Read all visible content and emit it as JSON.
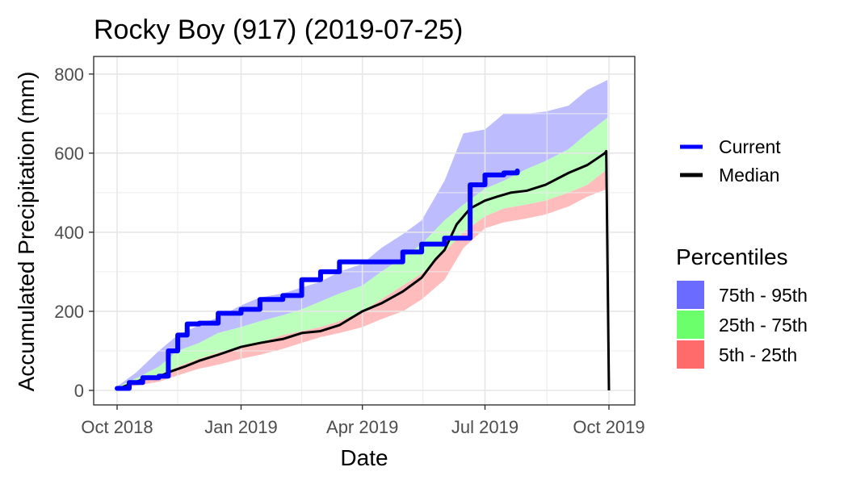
{
  "chart_data": {
    "type": "area",
    "title": "Rocky Boy (917) (2019-07-25)",
    "xlabel": "Date",
    "ylabel": "Accumulated Precipitation (mm)",
    "x_ticks": [
      "Oct 2018",
      "Jan 2019",
      "Apr 2019",
      "Jul 2019",
      "Oct 2019"
    ],
    "y_ticks": [
      0,
      200,
      400,
      600,
      800
    ],
    "xlim": [
      "2018-10-01",
      "2019-10-01"
    ],
    "ylim": [
      0,
      820
    ],
    "grid": true,
    "legend_position": "right",
    "legend": {
      "lines": [
        {
          "name": "Current",
          "color": "#0000ff"
        },
        {
          "name": "Median",
          "color": "#000000"
        }
      ],
      "percentiles_title": "Percentiles",
      "bands": [
        {
          "name": "75th - 95th",
          "color": "#6b6bff"
        },
        {
          "name": "25th - 75th",
          "color": "#6bff6b"
        },
        {
          "name": "5th - 25th",
          "color": "#ff6b6b"
        }
      ]
    },
    "band_fills": {
      "p75_p95": "#bcbcff",
      "p25_p75": "#bcffbc",
      "p5_p25": "#ffbcbc"
    },
    "band_dates": [
      "2018-10-01",
      "2018-10-15",
      "2018-11-01",
      "2018-11-15",
      "2018-12-01",
      "2018-12-15",
      "2019-01-01",
      "2019-01-15",
      "2019-02-01",
      "2019-02-15",
      "2019-03-01",
      "2019-03-15",
      "2019-04-01",
      "2019-04-15",
      "2019-05-01",
      "2019-05-15",
      "2019-06-01",
      "2019-06-15",
      "2019-07-01",
      "2019-07-15",
      "2019-08-01",
      "2019-08-15",
      "2019-09-01",
      "2019-09-15",
      "2019-09-30"
    ],
    "p5": [
      3,
      12,
      22,
      38,
      55,
      65,
      80,
      90,
      105,
      120,
      135,
      145,
      160,
      180,
      200,
      230,
      280,
      360,
      410,
      425,
      435,
      445,
      465,
      490,
      510
    ],
    "p25": [
      5,
      20,
      35,
      60,
      80,
      95,
      110,
      120,
      140,
      150,
      160,
      175,
      200,
      230,
      265,
      295,
      350,
      400,
      440,
      460,
      470,
      480,
      500,
      520,
      560
    ],
    "p75": [
      8,
      30,
      60,
      100,
      120,
      145,
      160,
      175,
      190,
      205,
      225,
      245,
      265,
      300,
      335,
      370,
      430,
      470,
      510,
      530,
      560,
      580,
      610,
      650,
      690
    ],
    "p95": [
      10,
      45,
      100,
      140,
      165,
      185,
      215,
      235,
      245,
      260,
      275,
      300,
      320,
      360,
      395,
      430,
      530,
      650,
      660,
      700,
      700,
      705,
      720,
      760,
      785
    ],
    "series": [
      {
        "name": "Median",
        "x": [
          "2018-10-01",
          "2018-10-10",
          "2018-10-20",
          "2018-11-01",
          "2018-11-10",
          "2018-11-20",
          "2018-12-01",
          "2018-12-15",
          "2019-01-01",
          "2019-01-15",
          "2019-02-01",
          "2019-02-15",
          "2019-03-01",
          "2019-03-15",
          "2019-04-01",
          "2019-04-15",
          "2019-05-01",
          "2019-05-15",
          "2019-05-25",
          "2019-06-01",
          "2019-06-10",
          "2019-06-20",
          "2019-07-01",
          "2019-07-10",
          "2019-07-20",
          "2019-08-01",
          "2019-08-15",
          "2019-09-01",
          "2019-09-15",
          "2019-09-28",
          "2019-09-29",
          "2019-10-01"
        ],
        "y": [
          3,
          15,
          28,
          35,
          48,
          60,
          75,
          90,
          110,
          120,
          130,
          145,
          150,
          165,
          200,
          220,
          250,
          285,
          330,
          355,
          420,
          460,
          480,
          490,
          500,
          505,
          520,
          550,
          570,
          600,
          605,
          0
        ]
      },
      {
        "name": "Current",
        "x": [
          "2018-10-01",
          "2018-10-10",
          "2018-10-20",
          "2018-11-01",
          "2018-11-08",
          "2018-11-15",
          "2018-11-22",
          "2018-12-01",
          "2018-12-15",
          "2019-01-01",
          "2019-01-15",
          "2019-02-01",
          "2019-02-15",
          "2019-03-01",
          "2019-03-15",
          "2019-04-01",
          "2019-04-15",
          "2019-05-01",
          "2019-05-15",
          "2019-06-01",
          "2019-06-10",
          "2019-06-15",
          "2019-06-20",
          "2019-07-01",
          "2019-07-15",
          "2019-07-25"
        ],
        "y": [
          5,
          20,
          32,
          36,
          100,
          140,
          168,
          170,
          195,
          205,
          230,
          240,
          280,
          300,
          325,
          325,
          325,
          350,
          370,
          385,
          385,
          385,
          520,
          545,
          550,
          555
        ]
      }
    ]
  }
}
